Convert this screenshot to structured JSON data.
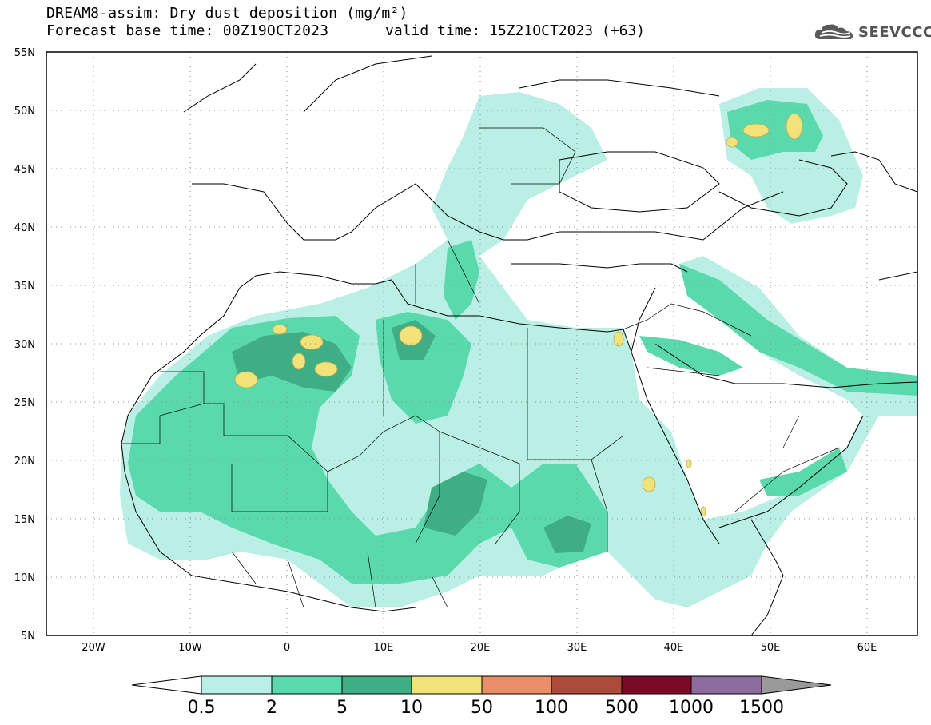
{
  "title": {
    "line1": "DREAM8-assim: Dry dust deposition (mg/m²)",
    "line2": "Forecast base time: 00Z19OCT2023",
    "valid": "valid time: 15Z21OCT2023 (+63)"
  },
  "logo": {
    "icon": "cloud-logo-icon",
    "text": "SEEVCCC"
  },
  "axes": {
    "lon_ticks": [
      "20W",
      "10W",
      "0",
      "10E",
      "20E",
      "30E",
      "40E",
      "50E",
      "60E"
    ],
    "lat_ticks": [
      "55N",
      "50N",
      "45N",
      "40N",
      "35N",
      "30N",
      "25N",
      "20N",
      "15N",
      "10N",
      "5N"
    ]
  },
  "colorbar": {
    "labels": [
      "0.5",
      "2",
      "5",
      "10",
      "50",
      "100",
      "500",
      "1000",
      "1500"
    ],
    "colors": [
      "#ffffff",
      "#b9efe4",
      "#5ad9ac",
      "#3fae84",
      "#f2e27a",
      "#e98e67",
      "#ad4b3b",
      "#7a0a26",
      "#8c6c9c",
      "#9a9a9a"
    ]
  },
  "colors": {
    "land": "#ffffff",
    "border": "#000000",
    "grid": "#8c8c8c"
  }
}
